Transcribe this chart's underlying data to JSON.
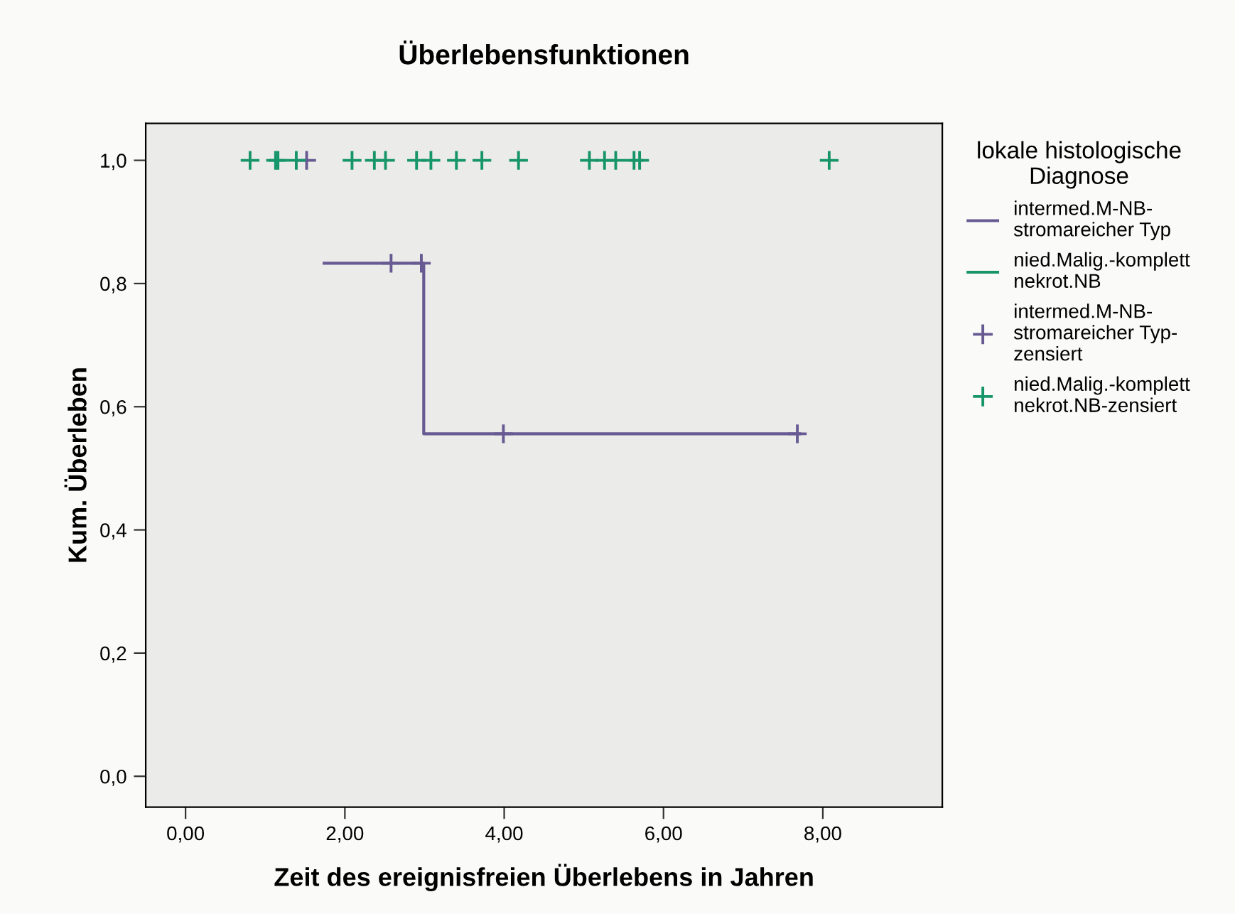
{
  "chart_data": {
    "type": "step",
    "title": "Überlebensfunktionen",
    "xlabel": "Zeit des ereignisfreien Überlebens in Jahren",
    "ylabel": "Kum. Überleben",
    "legend_title": "lokale histologische\nDiagnose",
    "legend": "right",
    "grid": false,
    "xlim": [
      -0.5,
      9.5
    ],
    "xticks": [
      {
        "value": 0,
        "label": "0,00"
      },
      {
        "value": 2,
        "label": "2,00"
      },
      {
        "value": 4,
        "label": "4,00"
      },
      {
        "value": 6,
        "label": "6,00"
      },
      {
        "value": 8,
        "label": "8,00"
      }
    ],
    "ylim": [
      -0.05,
      1.06
    ],
    "yticks": [
      {
        "value": 0,
        "label": "0,0"
      },
      {
        "value": 0.2,
        "label": "0,2"
      },
      {
        "value": 0.4,
        "label": "0,4"
      },
      {
        "value": 0.6,
        "label": "0,6"
      },
      {
        "value": 0.8,
        "label": "0,8"
      },
      {
        "value": 1.0,
        "label": "1,0"
      }
    ],
    "series": [
      {
        "name": "intermed.M-NB-\nstromareicher Typ",
        "color": "#675a92",
        "marker": "none",
        "x": [
          1.74,
          2.99,
          7.71
        ],
        "values": [
          0.833,
          0.556,
          0.556
        ]
      },
      {
        "name": "nied.Malig.-komplett\nnekrot.NB",
        "color": "#17956a",
        "marker": "none"
      },
      {
        "name": "intermed.M-NB-\nstromareicher Typ-\nzensiert",
        "type": "scatter",
        "color": "#675a92",
        "marker": "cross",
        "x": [
          1.52,
          2.58,
          2.96,
          3.99,
          7.68
        ],
        "values": [
          1.0,
          0.833,
          0.833,
          0.556,
          0.556
        ]
      },
      {
        "name": "nied.Malig.-komplett\nnekrot.NB-zensiert",
        "type": "scatter",
        "color": "#17956a",
        "marker": "cross",
        "x": [
          0.81,
          1.13,
          1.16,
          1.39,
          2.09,
          2.37,
          2.51,
          2.9,
          3.08,
          3.4,
          3.72,
          4.18,
          5.07,
          5.26,
          5.4,
          5.63,
          5.7,
          8.08
        ],
        "values": [
          1,
          1,
          1,
          1,
          1,
          1,
          1,
          1,
          1,
          1,
          1,
          1,
          1,
          1,
          1,
          1,
          1,
          1
        ]
      }
    ]
  }
}
